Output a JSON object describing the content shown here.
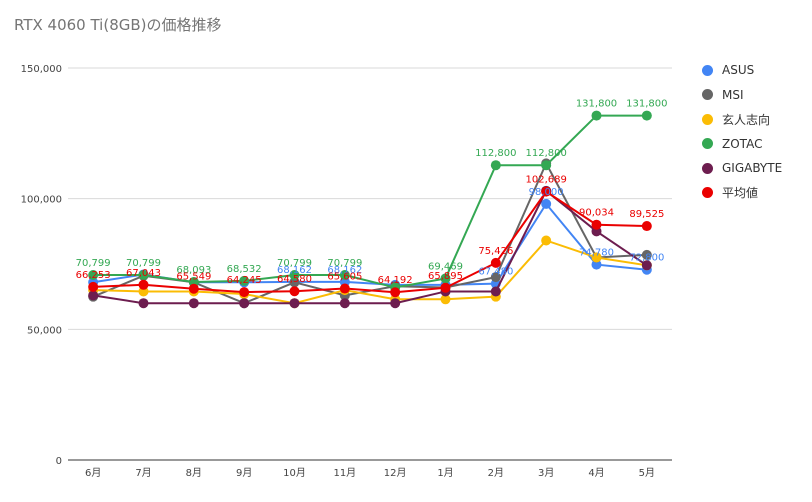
{
  "chart_data": {
    "type": "line",
    "title": "RTX 4060 Ti(8GB)の価格推移",
    "xlabel": "",
    "ylabel": "",
    "categories": [
      "6月",
      "7月",
      "8月",
      "9月",
      "10月",
      "11月",
      "12月",
      "1月",
      "2月",
      "3月",
      "4月",
      "5月"
    ],
    "ylim": [
      0,
      150000
    ],
    "yticks": [
      0,
      50000,
      100000,
      150000
    ],
    "ytick_labels": [
      "0",
      "50,000",
      "100,000",
      "150,000"
    ],
    "grid": true,
    "legend_position": "right",
    "series": [
      {
        "name": "ASUS",
        "color": "#4285f4",
        "values": [
          68000,
          71000,
          68000,
          68000,
          68162,
          68162,
          67000,
          67000,
          67480,
          98000,
          74780,
          72800
        ],
        "labels": [
          "",
          "",
          "",
          "",
          "68,162",
          "68,162",
          "",
          "",
          "67,480",
          "98,000",
          "74,780",
          "72,800"
        ]
      },
      {
        "name": "MSI",
        "color": "#666666",
        "values": [
          62500,
          70500,
          68000,
          60000,
          68000,
          63000,
          66500,
          66000,
          70000,
          113500,
          77500,
          78500
        ],
        "labels": [
          "",
          "",
          "",
          "",
          "",
          "",
          "",
          "",
          "",
          "",
          "",
          ""
        ]
      },
      {
        "name": "玄人志向",
        "color": "#fbbc04",
        "values": [
          65000,
          64500,
          64500,
          63500,
          60000,
          65000,
          61500,
          61500,
          62500,
          84000,
          77500,
          74500
        ],
        "labels": [
          "",
          "",
          "",
          "",
          "",
          "",
          "",
          "",
          "",
          "",
          "",
          ""
        ]
      },
      {
        "name": "ZOTAC",
        "color": "#34a853",
        "values": [
          70799,
          70799,
          68093,
          68532,
          70799,
          70799,
          66000,
          69469,
          112800,
          112800,
          131800,
          131800
        ],
        "labels": [
          "70,799",
          "70,799",
          "68,093",
          "68,532",
          "70,799",
          "70,799",
          "",
          "69,469",
          "112,800",
          "112,800",
          "131,800",
          "131,800"
        ]
      },
      {
        "name": "GIGABYTE",
        "color": "#6d1d4f",
        "values": [
          63000,
          60000,
          60000,
          60000,
          60000,
          60000,
          60000,
          64500,
          64500,
          103000,
          87500,
          74500
        ],
        "labels": [
          "",
          "",
          "",
          "",
          "",
          "",
          "",
          "",
          "",
          "",
          "",
          ""
        ]
      },
      {
        "name": "平均値",
        "color": "#ea0000",
        "values": [
          66253,
          67043,
          65549,
          64245,
          64580,
          65605,
          64192,
          65895,
          75426,
          102689,
          90034,
          89525
        ],
        "labels": [
          "66,253",
          "67,043",
          "65,549",
          "64,245",
          "64,580",
          "65,605",
          "64,192",
          "65,895",
          "75,426",
          "102,689",
          "90,034",
          "89,525"
        ]
      }
    ]
  }
}
